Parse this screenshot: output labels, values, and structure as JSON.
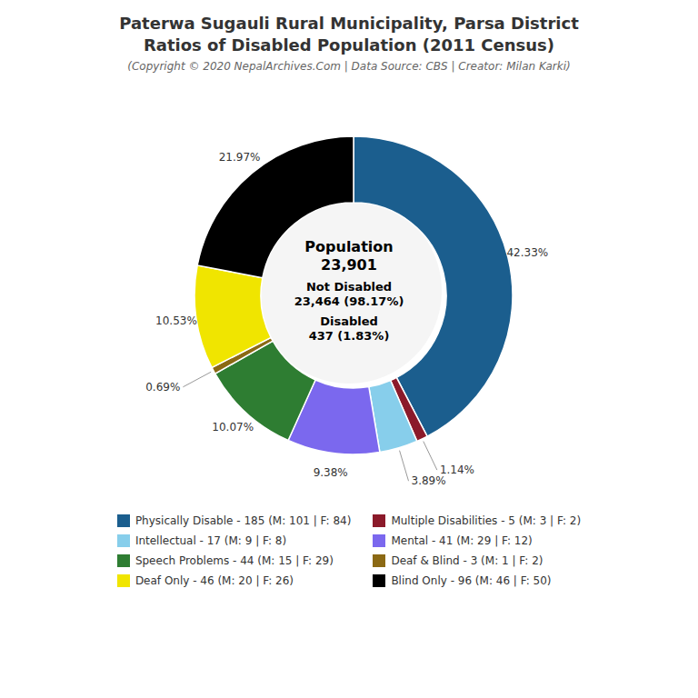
{
  "chart_data": {
    "type": "pie",
    "title": "Paterwa Sugauli Rural Municipality, Parsa District\nRatios of Disabled Population (2011 Census)",
    "subtitle": "(Copyright © 2020 NepalArchives.Com | Data Source: CBS | Creator: Milan Karki)",
    "categories": [
      "Physically Disable - 185 (M: 101 | F: 84)",
      "Multiple Disabilities - 5 (M: 3 | F: 2)",
      "Intellectual - 17 (M: 9 | F: 8)",
      "Mental - 41 (M: 29 | F: 12)",
      "Speech Problems - 44 (M: 15 | F: 29)",
      "Deaf & Blind - 3 (M: 1 | F: 2)",
      "Deaf Only - 46 (M: 20 | F: 26)",
      "Blind Only - 96 (M: 46 | F: 50)"
    ],
    "values": [
      42.33,
      1.14,
      3.89,
      9.38,
      10.07,
      0.69,
      10.53,
      21.97
    ],
    "value_labels": [
      "42.33%",
      "1.14%",
      "3.89%",
      "9.38%",
      "10.07%",
      "0.69%",
      "10.53%",
      "21.97%"
    ],
    "colors": [
      "#1b5e8e",
      "#8b1a2a",
      "#87ceeb",
      "#7b68ee",
      "#2e7d32",
      "#8b6914",
      "#f0e500",
      "#000000"
    ],
    "annotations": [
      "Population\n23,901",
      "Not Disabled\n23,464 (98.17%)",
      "Disabled\n437 (1.83%)"
    ],
    "legend": "bottom",
    "data_labels": true
  }
}
